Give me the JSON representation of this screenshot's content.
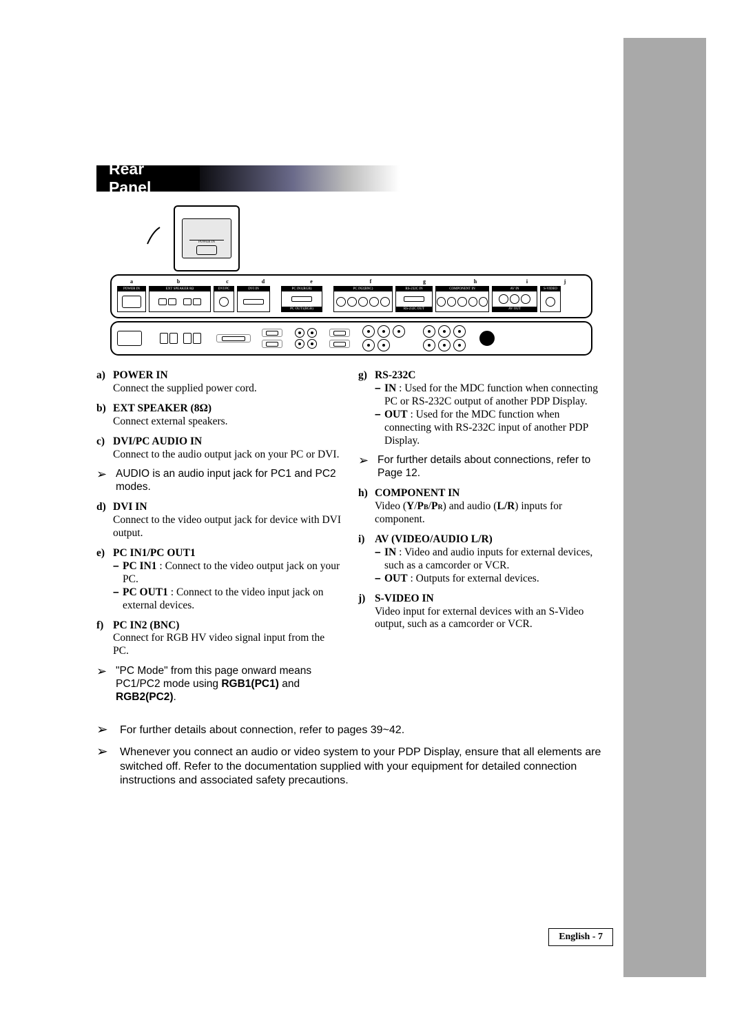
{
  "section_title": "Rear Panel",
  "colors": {
    "black": "#000000",
    "white": "#ffffff",
    "sidebar_gray": "#a9a9a9",
    "gradient_mid": "#6a6a8a",
    "gradient_light": "#bbbbbb"
  },
  "diagram": {
    "zoom_label": "POWER IN",
    "col_labels": [
      "a",
      "b",
      "c",
      "d",
      "e",
      "f",
      "g",
      "h",
      "i",
      "j"
    ],
    "modules_top": [
      "POWER IN",
      "EXT SPEAKER 8Ω",
      "DVI/PC AUDIO IN",
      "DVI IN",
      "PC IN1(RGB)",
      "PC IN2(BNC)",
      "RS-232C IN",
      "COMPONENT IN",
      "AV IN",
      "S-VIDEO"
    ],
    "modules_sub": [
      "",
      "",
      "",
      "",
      "PC OUT1(RGB)",
      "",
      "RS-232C OUT",
      "",
      "AV OUT",
      ""
    ],
    "bottom_left": "POWER"
  },
  "left": [
    {
      "letter": "a)",
      "title": "POWER IN",
      "body": "Connect the supplied power cord."
    },
    {
      "letter": "b)",
      "title": "EXT SPEAKER (8Ω)",
      "body": "Connect external speakers."
    },
    {
      "letter": "c)",
      "title": "DVI/PC AUDIO IN",
      "body": "Connect to the audio output jack on your PC or DVI.",
      "note": "AUDIO is an audio input jack for PC1 and PC2 modes."
    },
    {
      "letter": "d)",
      "title": "DVI IN",
      "body": "Connect to the video output jack for device with DVI output."
    },
    {
      "letter": "e)",
      "title": "PC IN1/PC OUT1",
      "sub": [
        {
          "label": "PC IN1",
          "text": "Connect to the video output jack on your PC."
        },
        {
          "label": "PC OUT1",
          "text": "Connect to the video input jack on external devices."
        }
      ]
    },
    {
      "letter": "f)",
      "title": "PC IN2 (BNC)",
      "body": "Connect for RGB HV video signal input from the PC.",
      "note_html": "\"PC Mode\" from this page onward means PC1/PC2 mode using <b>RGB1(PC1)</b> and <b>RGB2(PC2)</b>."
    }
  ],
  "right": [
    {
      "letter": "g)",
      "title": "RS-232C",
      "sub": [
        {
          "label": "IN",
          "text": "Used for the MDC function when connecting PC or RS-232C output of another PDP Display."
        },
        {
          "label": "OUT",
          "text": "Used for the MDC function when connecting with RS-232C input of another PDP Display."
        }
      ],
      "note": "For further details about connections, refer to Page 12."
    },
    {
      "letter": "h)",
      "title": "COMPONENT IN",
      "body_html": "Video (<b>Y</b>/<b>P<span class='subsc'>B</span></b>/<b>P<span class='subsc'>R</span></b>) and audio (<b>L/R</b>) inputs for component."
    },
    {
      "letter": "i)",
      "title": "AV (VIDEO/AUDIO L/R)",
      "sub": [
        {
          "label": "IN",
          "text": "Video and audio inputs for external devices, such as a camcorder or VCR."
        },
        {
          "label": "OUT",
          "text": "Outputs for external devices."
        }
      ]
    },
    {
      "letter": "j)",
      "title": "S-VIDEO IN",
      "body": "Video input for external devices with an S-Video output, such as a camcorder or VCR."
    }
  ],
  "bottom_notes": [
    "For further details about connection, refer to pages 39~42.",
    "Whenever you connect an audio or video system to your PDP Display, ensure that all elements are switched off. Refer to the documentation supplied with your equipment  for detailed connection instructions and associated safety precautions."
  ],
  "page_footer": "English - 7"
}
